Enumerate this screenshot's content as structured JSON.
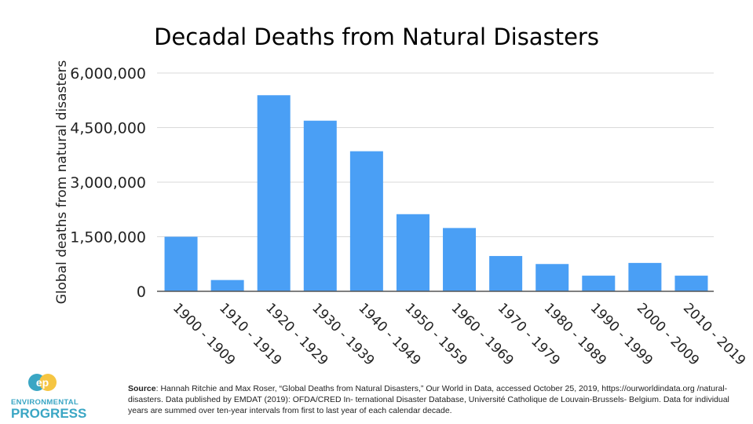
{
  "chart_data": {
    "type": "bar",
    "title": "Decadal Deaths from Natural Disasters",
    "xlabel": "",
    "ylabel": "Global deaths from natural disasters",
    "categories": [
      "1900 - 1909",
      "1910 - 1919",
      "1920 - 1929",
      "1930 - 1939",
      "1940 - 1949",
      "1950 - 1959",
      "1960 - 1969",
      "1970 - 1979",
      "1980 - 1989",
      "1990 - 1999",
      "2000 - 2009",
      "2010 - 2019"
    ],
    "values": [
      1500000,
      310000,
      5390000,
      4690000,
      3850000,
      2120000,
      1740000,
      970000,
      750000,
      430000,
      780000,
      430000
    ],
    "ylim": [
      0,
      6000000
    ],
    "yticks": [
      0,
      1500000,
      3000000,
      4500000,
      6000000
    ],
    "ytick_labels": [
      "0",
      "1,500,000",
      "3,000,000",
      "4,500,000",
      "6,000,000"
    ],
    "grid": true,
    "legend": "none",
    "bar_color": "#4a9ff5"
  },
  "source": {
    "label": "Source",
    "text": ": Hannah Ritchie and Max Roser, “Global Deaths from Natural Disasters,” Our World in Data, accessed October 25, 2019, https://ourworldindata.org /natural-disasters. Data published by EMDAT (2019): OFDA/CRED In- ternational Disaster Database, Université Catholique de Louvain-Brussels- Belgium. Data for individual years are summed over ten-year intervals from first to last year of each calendar decade."
  },
  "logo": {
    "line1": "ENVIRONMENTAL",
    "line2": "PROGRESS",
    "mark": "ep",
    "color": "#3aa6c4",
    "accent": "#f5c542"
  }
}
